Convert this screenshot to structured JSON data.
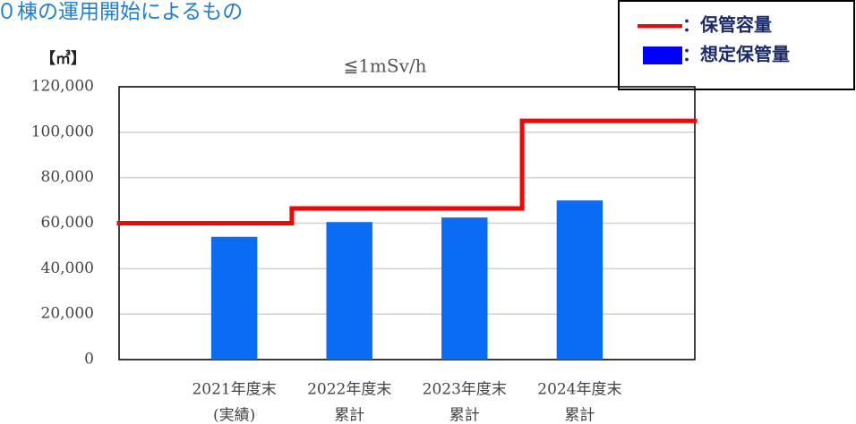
{
  "heading": "０棟の運用開始によるもの",
  "chart_data": {
    "type": "combo",
    "unit_label": "【㎥】",
    "subtitle": "≦1mSv/h",
    "categories": [
      [
        "2021年度末",
        "(実績)"
      ],
      [
        "2022年度末",
        "累計"
      ],
      [
        "2023年度末",
        "累計"
      ],
      [
        "2024年度末",
        "累計"
      ]
    ],
    "series": [
      {
        "name": "：保管容量",
        "type": "step",
        "color": "#ff0000",
        "values": [
          60000,
          66500,
          66500,
          105000
        ]
      },
      {
        "name": "：想定保管量",
        "type": "bar",
        "color": "#0a6cf5",
        "values": [
          54000,
          60500,
          62500,
          70000
        ]
      }
    ],
    "ylim": [
      0,
      120000
    ],
    "yticks": [
      0,
      {
        "value": 20000,
        "label": "20,000"
      },
      {
        "value": 40000,
        "label": "40,000"
      },
      {
        "value": 60000,
        "label": "60,000"
      },
      {
        "value": 80000,
        "label": "80,000"
      },
      {
        "value": 100000,
        "label": "100,000"
      },
      {
        "value": 120000,
        "label": "120,000"
      }
    ],
    "grid": true,
    "legend": "top-right"
  }
}
